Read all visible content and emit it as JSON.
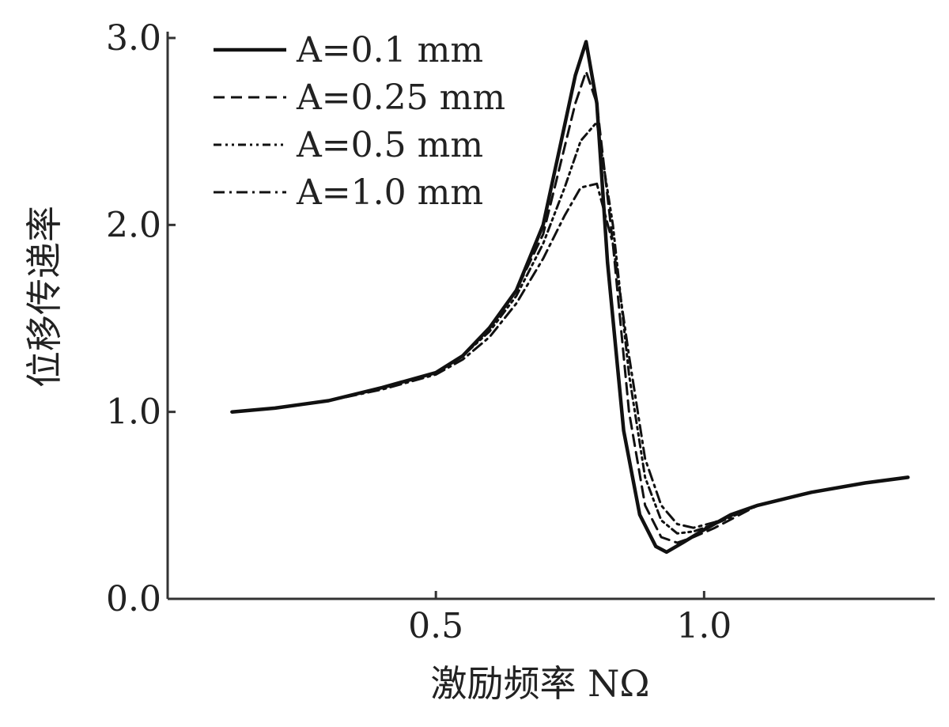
{
  "chart_data": {
    "type": "line",
    "xlabel": "激励频率 NΩ",
    "ylabel": "位移传递率",
    "xlim": [
      0.0,
      1.43
    ],
    "ylim": [
      0.0,
      3.0
    ],
    "xticks": [
      {
        "value": 0.5,
        "label": "0.5"
      },
      {
        "value": 1.0,
        "label": "1.0"
      }
    ],
    "yticks": [
      {
        "value": 0.0,
        "label": "0.0"
      },
      {
        "value": 1.0,
        "label": "1.0"
      },
      {
        "value": 2.0,
        "label": "2.0"
      },
      {
        "value": 3.0,
        "label": "3.0"
      }
    ],
    "legend_position": "top-left",
    "series": [
      {
        "name": "A=0.1 mm",
        "dash": "solid",
        "x": [
          0.12,
          0.2,
          0.3,
          0.4,
          0.5,
          0.55,
          0.6,
          0.65,
          0.7,
          0.73,
          0.76,
          0.78,
          0.8,
          0.82,
          0.85,
          0.88,
          0.91,
          0.93,
          0.96,
          1.0,
          1.05,
          1.1,
          1.2,
          1.3,
          1.38
        ],
        "y": [
          1.0,
          1.02,
          1.06,
          1.13,
          1.21,
          1.3,
          1.45,
          1.65,
          2.0,
          2.4,
          2.8,
          2.98,
          2.65,
          1.8,
          0.9,
          0.45,
          0.28,
          0.25,
          0.3,
          0.37,
          0.45,
          0.5,
          0.57,
          0.62,
          0.65
        ]
      },
      {
        "name": "A=0.25 mm",
        "dash": "dashed",
        "x": [
          0.12,
          0.2,
          0.3,
          0.4,
          0.5,
          0.55,
          0.6,
          0.65,
          0.7,
          0.73,
          0.76,
          0.78,
          0.8,
          0.83,
          0.86,
          0.89,
          0.92,
          0.95,
          0.98,
          1.02,
          1.1,
          1.2,
          1.3,
          1.38
        ],
        "y": [
          1.0,
          1.02,
          1.06,
          1.13,
          1.21,
          1.3,
          1.45,
          1.65,
          1.95,
          2.3,
          2.65,
          2.82,
          2.65,
          1.9,
          1.0,
          0.5,
          0.33,
          0.3,
          0.33,
          0.38,
          0.5,
          0.57,
          0.62,
          0.65
        ]
      },
      {
        "name": "A=0.5 mm",
        "dash": "dash-dot-dot",
        "x": [
          0.12,
          0.2,
          0.3,
          0.4,
          0.5,
          0.55,
          0.6,
          0.65,
          0.7,
          0.74,
          0.77,
          0.8,
          0.83,
          0.86,
          0.89,
          0.92,
          0.95,
          0.98,
          1.02,
          1.1,
          1.2,
          1.3,
          1.38
        ],
        "y": [
          1.0,
          1.02,
          1.06,
          1.13,
          1.21,
          1.3,
          1.43,
          1.62,
          1.9,
          2.2,
          2.45,
          2.55,
          2.0,
          1.2,
          0.65,
          0.42,
          0.35,
          0.36,
          0.4,
          0.5,
          0.57,
          0.62,
          0.65
        ]
      },
      {
        "name": "A=1.0 mm",
        "dash": "dash-dot",
        "x": [
          0.12,
          0.2,
          0.3,
          0.4,
          0.5,
          0.55,
          0.6,
          0.65,
          0.7,
          0.74,
          0.77,
          0.8,
          0.83,
          0.86,
          0.89,
          0.92,
          0.95,
          0.98,
          1.02,
          1.1,
          1.2,
          1.3,
          1.38
        ],
        "y": [
          1.0,
          1.02,
          1.06,
          1.12,
          1.2,
          1.28,
          1.4,
          1.58,
          1.82,
          2.05,
          2.2,
          2.22,
          1.9,
          1.3,
          0.75,
          0.5,
          0.4,
          0.38,
          0.41,
          0.5,
          0.57,
          0.62,
          0.65
        ]
      }
    ]
  }
}
